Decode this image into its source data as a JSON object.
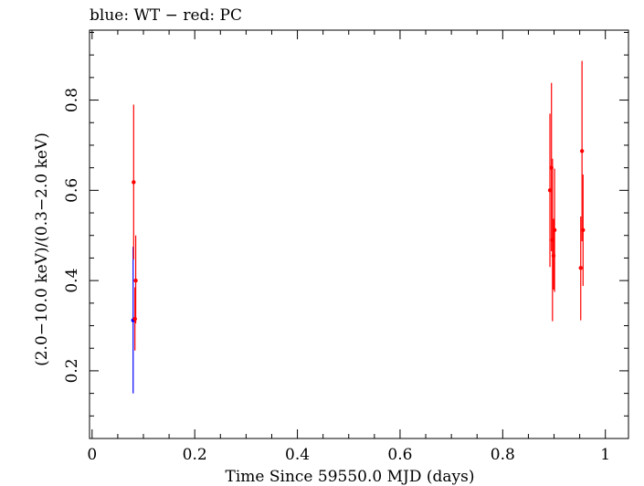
{
  "chart_data": {
    "type": "scatter",
    "title": "blue: WT − red: PC",
    "xlabel": "Time Since 59550.0 MJD (days)",
    "ylabel": "(2.0−10.0 keV)/(0.3−2.0 keV)",
    "xlim": [
      -0.005,
      1.045
    ],
    "ylim": [
      0.05,
      0.955
    ],
    "x_ticks": [
      0,
      0.2,
      0.4,
      0.6,
      0.8,
      1
    ],
    "x_tick_labels": [
      "0",
      "0.2",
      "0.4",
      "0.6",
      "0.8",
      "1"
    ],
    "y_ticks": [
      0.2,
      0.4,
      0.6,
      0.8
    ],
    "y_tick_labels": [
      "0.2",
      "0.4",
      "0.6",
      "0.8"
    ],
    "series": [
      {
        "name": "WT",
        "color": "#0000ff",
        "points": [
          {
            "x": 0.08,
            "y": 0.312,
            "ylo": 0.15,
            "yhi": 0.475
          }
        ]
      },
      {
        "name": "PC",
        "color": "#ff0000",
        "points": [
          {
            "x": 0.081,
            "y": 0.618,
            "ylo": 0.447,
            "yhi": 0.79
          },
          {
            "x": 0.0835,
            "y": 0.315,
            "ylo": 0.245,
            "yhi": 0.385
          },
          {
            "x": 0.085,
            "y": 0.4,
            "ylo": 0.305,
            "yhi": 0.5
          },
          {
            "x": 0.892,
            "y": 0.6,
            "ylo": 0.43,
            "yhi": 0.77
          },
          {
            "x": 0.895,
            "y": 0.65,
            "ylo": 0.465,
            "yhi": 0.838
          },
          {
            "x": 0.897,
            "y": 0.49,
            "ylo": 0.31,
            "yhi": 0.67
          },
          {
            "x": 0.899,
            "y": 0.455,
            "ylo": 0.38,
            "yhi": 0.537
          },
          {
            "x": 0.901,
            "y": 0.512,
            "ylo": 0.375,
            "yhi": 0.648
          },
          {
            "x": 0.952,
            "y": 0.428,
            "ylo": 0.312,
            "yhi": 0.542
          },
          {
            "x": 0.9545,
            "y": 0.687,
            "ylo": 0.487,
            "yhi": 0.887
          },
          {
            "x": 0.9565,
            "y": 0.512,
            "ylo": 0.388,
            "yhi": 0.635
          }
        ]
      }
    ]
  }
}
